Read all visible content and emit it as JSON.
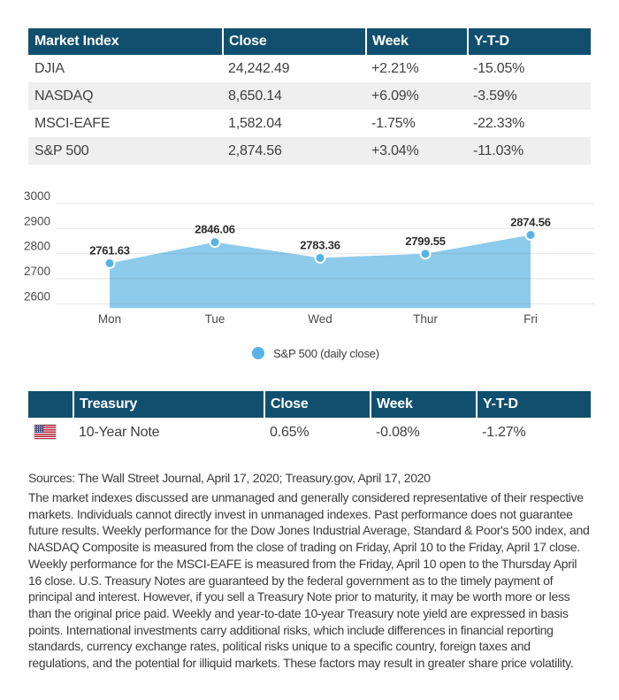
{
  "market_table": {
    "headers": [
      "Market Index",
      "Close",
      "Week",
      "Y-T-D"
    ],
    "rows": [
      {
        "name": "DJIA",
        "close": "24,242.49",
        "week": "+2.21%",
        "ytd": "-15.05%"
      },
      {
        "name": "NASDAQ",
        "close": "8,650.14",
        "week": "+6.09%",
        "ytd": "-3.59%"
      },
      {
        "name": "MSCI-EAFE",
        "close": "1,582.04",
        "week": "-1.75%",
        "ytd": "-22.33%"
      },
      {
        "name": "S&P 500",
        "close": "2,874.56",
        "week": "+3.04%",
        "ytd": "-11.03%"
      }
    ]
  },
  "chart_data": {
    "type": "area",
    "categories": [
      "Mon",
      "Tue",
      "Wed",
      "Thur",
      "Fri"
    ],
    "series": [
      {
        "name": "S&P 500 (daily close)",
        "values": [
          2761.63,
          2846.06,
          2783.36,
          2799.55,
          2874.56
        ]
      }
    ],
    "point_labels": [
      "2761.63",
      "2846.06",
      "2783.36",
      "2799.55",
      "2874.56"
    ],
    "yticks": [
      2600,
      2700,
      2800,
      2900,
      3000
    ],
    "ytick_labels": [
      "2600",
      "2700",
      "2800",
      "2900",
      "3000"
    ],
    "ylim": [
      2583,
      3000
    ],
    "grid": true,
    "legend_position": "bottom",
    "title": "",
    "xlabel": "",
    "ylabel": "",
    "colors": {
      "area": "#8DCAEC",
      "marker": "#57B3E6",
      "marker_ring": "#ffffff",
      "gridline_rgba": "rgba(110,110,110,0.18)",
      "axis_text": "#4a4a4a",
      "point_label": "#2e2e2e"
    }
  },
  "treasury_table": {
    "headers": [
      "",
      "Treasury",
      "Close",
      "Week",
      "Y-T-D"
    ],
    "rows": [
      {
        "flag": "us-flag",
        "name": "10-Year Note",
        "close": "0.65%",
        "week": "-0.08%",
        "ytd": "-1.27%"
      }
    ]
  },
  "footer": {
    "sources": "Sources: The Wall Street Journal, April 17, 2020; Treasury.gov, April 17, 2020",
    "disclaimer": "The market indexes discussed are unmanaged and generally considered representative of their respective markets. Individuals cannot directly invest in unmanaged indexes. Past performance does not guarantee future results. Weekly performance for the Dow Jones Industrial Average, Standard & Poor's 500 index, and NASDAQ Composite is measured from the close of trading on Friday, April 10 to the Friday, April 17 close. Weekly performance for the MSCI-EAFE is measured from the Friday, April 10 open to the Thursday April 16 close. U.S. Treasury Notes are guaranteed by the federal government as to the timely payment of principal and interest. However, if you sell a Treasury Note prior to maturity, it may be worth more or less than the original price paid. Weekly and year-to-date 10-year Treasury note yield are expressed in basis points. International investments carry additional risks, which include differences in financial reporting standards, currency exchange rates, political risks unique to a specific country, foreign taxes and regulations, and the potential for illiquid markets. These factors may result in greater share price volatility."
  },
  "colors": {
    "header_bg": "#114F6E",
    "row_alt_bg": "#efefef",
    "body_text": "#3f3f3f"
  }
}
